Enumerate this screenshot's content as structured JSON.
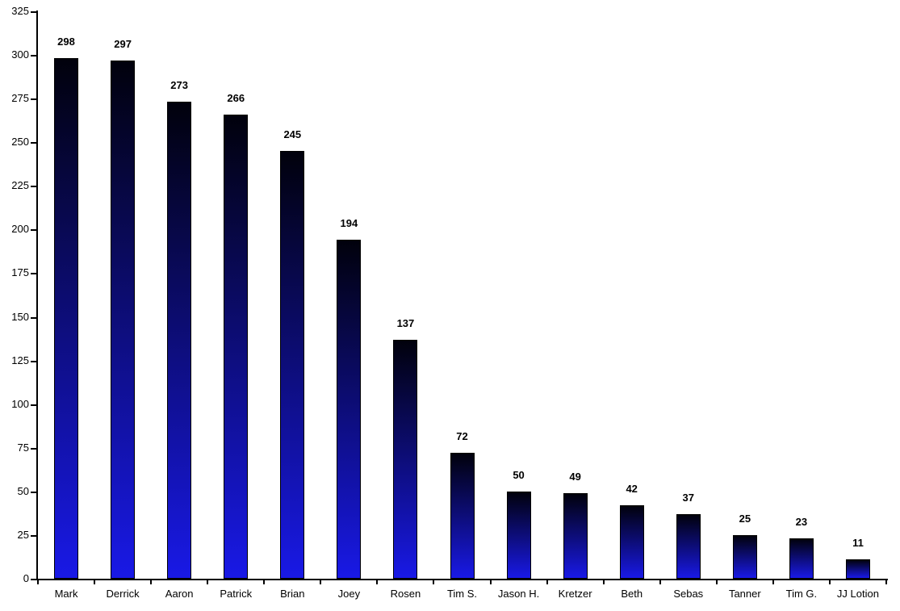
{
  "chart_data": {
    "type": "bar",
    "title": "",
    "xlabel": "",
    "ylabel": "",
    "categories": [
      "Mark",
      "Derrick",
      "Aaron",
      "Patrick",
      "Brian",
      "Joey",
      "Rosen",
      "Tim S.",
      "Jason H.",
      "Kretzer",
      "Beth",
      "Sebas",
      "Tanner",
      "Tim G.",
      "JJ Lotion"
    ],
    "values": [
      298,
      297,
      273,
      266,
      245,
      194,
      137,
      72,
      50,
      49,
      42,
      37,
      25,
      23,
      11
    ],
    "ylim": [
      0,
      325
    ],
    "ytick_step": 25,
    "grid": false,
    "legend": false,
    "colors": {
      "bar_gradient_top": "#01010c",
      "bar_gradient_bottom": "#1919e6",
      "axis": "#000000",
      "text": "#000000",
      "background": "#ffffff"
    }
  }
}
